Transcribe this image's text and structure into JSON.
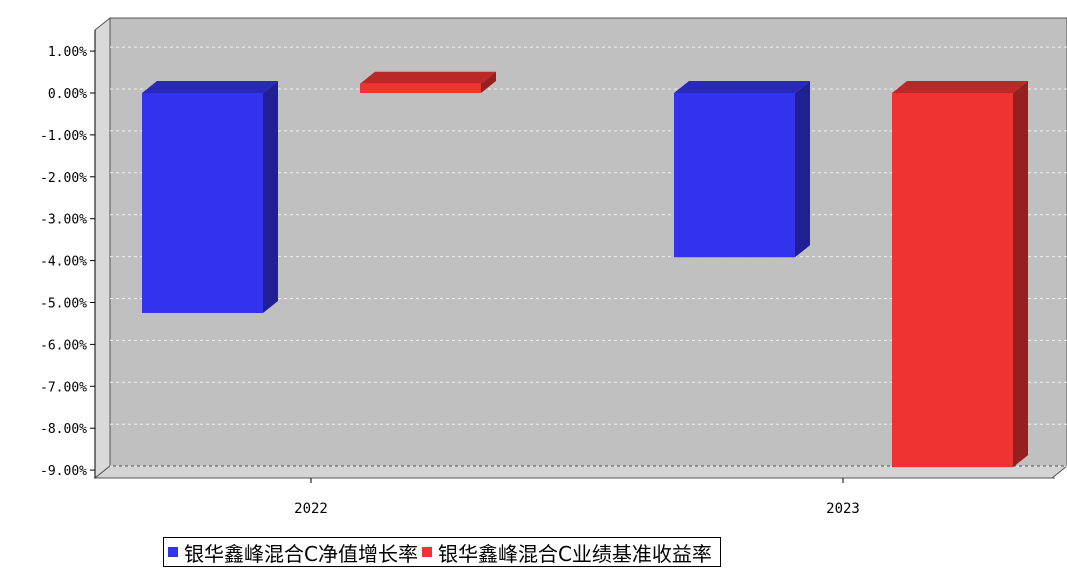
{
  "chart_data": {
    "type": "bar",
    "categories": [
      "2022",
      "2023"
    ],
    "series": [
      {
        "name": "银华鑫峰混合C净值增长率",
        "values": [
          -5.25,
          -3.92
        ],
        "color": "#3333ee"
      },
      {
        "name": "银华鑫峰混合C业绩基准收益率",
        "values": [
          0.22,
          -8.93
        ],
        "color": "#ee3333"
      }
    ],
    "ylim": [
      -9.0,
      1.0
    ],
    "yticks": [
      "1.00%",
      "0.00%",
      "-1.00%",
      "-2.00%",
      "-3.00%",
      "-4.00%",
      "-5.00%",
      "-6.00%",
      "-7.00%",
      "-8.00%",
      "-9.00%"
    ],
    "grid": true,
    "three_d": true,
    "legend_position": "bottom",
    "title": "",
    "xlabel": "",
    "ylabel": ""
  }
}
